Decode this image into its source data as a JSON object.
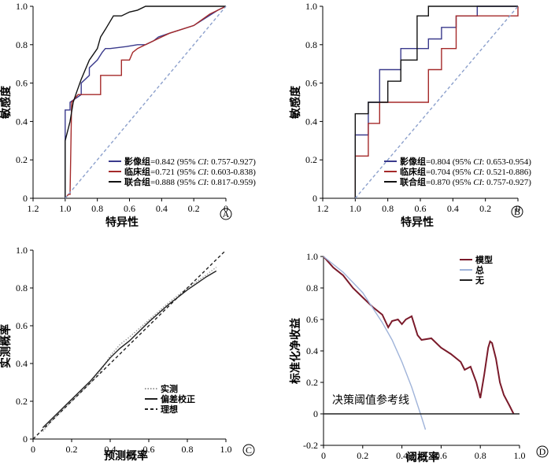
{
  "chart_data": [
    {
      "type": "line",
      "panel": "A",
      "xlabel": "特异性",
      "ylabel": "敏感度",
      "xlim": [
        1.2,
        0
      ],
      "ylim": [
        0,
        1.0
      ],
      "x_ticks": [
        "1.2",
        "1.0",
        "0.8",
        "0.6",
        "0.4",
        "0.2",
        "0"
      ],
      "y_ticks": [
        "0",
        "0.2",
        "0.4",
        "0.6",
        "0.8",
        "1.0"
      ],
      "legend_position": "bottom-right",
      "legend": [
        {
          "name": "影像组",
          "text": "=0.842 (95% ",
          "ci": "CI",
          "range": ": 0.757-0.927)",
          "color": "#3a3a8c"
        },
        {
          "name": "临床组",
          "text": "=0.721 (95% ",
          "ci": "CI",
          "range": ": 0.603-0.838)",
          "color": "#a52a2a"
        },
        {
          "name": "联合组",
          "text": "=0.888 (95% ",
          "ci": "CI",
          "range": ": 0.817-0.959)",
          "color": "#111111"
        }
      ],
      "series": [
        {
          "name": "影像组",
          "color": "#3a3a8c",
          "x": [
            1.0,
            1.0,
            0.97,
            0.97,
            0.9,
            0.9,
            0.85,
            0.85,
            0.8,
            0.77,
            0.75,
            0.72,
            0.62,
            0.55,
            0.5,
            0.45,
            0.42,
            0.35,
            0.2,
            0.05,
            0
          ],
          "y": [
            0,
            0.46,
            0.46,
            0.5,
            0.54,
            0.6,
            0.64,
            0.68,
            0.72,
            0.76,
            0.78,
            0.78,
            0.79,
            0.8,
            0.8,
            0.82,
            0.84,
            0.86,
            0.9,
            0.98,
            1.0
          ]
        },
        {
          "name": "临床组",
          "color": "#a52a2a",
          "x": [
            1.0,
            0.98,
            0.97,
            0.96,
            0.92,
            0.88,
            0.78,
            0.78,
            0.65,
            0.65,
            0.6,
            0.58,
            0.55,
            0.5,
            0.45,
            0.4,
            0.35,
            0.2,
            0.1,
            0
          ],
          "y": [
            0,
            0.02,
            0.02,
            0.5,
            0.54,
            0.54,
            0.54,
            0.64,
            0.64,
            0.72,
            0.72,
            0.76,
            0.78,
            0.8,
            0.82,
            0.84,
            0.86,
            0.9,
            0.96,
            1.0
          ]
        },
        {
          "name": "联合组",
          "color": "#111111",
          "x": [
            1.0,
            1.0,
            0.97,
            0.95,
            0.93,
            0.9,
            0.88,
            0.85,
            0.8,
            0.78,
            0.75,
            0.7,
            0.65,
            0.6,
            0.55,
            0.5,
            0.4,
            0.3,
            0.2,
            0
          ],
          "y": [
            0,
            0.3,
            0.4,
            0.5,
            0.55,
            0.62,
            0.66,
            0.72,
            0.78,
            0.84,
            0.88,
            0.95,
            0.95,
            0.97,
            0.98,
            1.0,
            1.0,
            1.0,
            1.0,
            1.0
          ]
        },
        {
          "name": "参考线",
          "color": "#8ca0cc",
          "dashed": true,
          "x": [
            1.0,
            0
          ],
          "y": [
            0,
            1.0
          ]
        }
      ]
    },
    {
      "type": "line",
      "panel": "B",
      "xlabel": "特异性",
      "ylabel": "敏感度",
      "xlim": [
        1.2,
        0
      ],
      "ylim": [
        0,
        1.0
      ],
      "x_ticks": [
        "1.2",
        "1.0",
        "0.8",
        "0.6",
        "0.4",
        "0.2",
        "0"
      ],
      "y_ticks": [
        "0",
        "0.2",
        "0.4",
        "0.6",
        "0.8",
        "1.0"
      ],
      "legend_position": "bottom-right",
      "legend": [
        {
          "name": "影像组",
          "text": "=0.804 (95% ",
          "ci": "CI",
          "range": ": 0.653-0.954)",
          "color": "#3a3a8c"
        },
        {
          "name": "临床组",
          "text": "=0.704 (95% ",
          "ci": "CI",
          "range": ": 0.521-0.886)",
          "color": "#a52a2a"
        },
        {
          "name": "联合组",
          "text": "=0.870 (95% ",
          "ci": "CI",
          "range": ": 0.757-0.927)",
          "color": "#111111"
        }
      ],
      "series": [
        {
          "name": "影像组",
          "color": "#3a3a8c",
          "x": [
            1.0,
            1.0,
            0.92,
            0.92,
            0.85,
            0.85,
            0.72,
            0.72,
            0.55,
            0.55,
            0.47,
            0.47,
            0.38,
            0.38,
            0.25,
            0.25,
            0
          ],
          "y": [
            0,
            0.33,
            0.33,
            0.5,
            0.5,
            0.67,
            0.67,
            0.78,
            0.78,
            0.83,
            0.83,
            0.89,
            0.89,
            0.95,
            0.95,
            1.0,
            1.0
          ]
        },
        {
          "name": "临床组",
          "color": "#a52a2a",
          "x": [
            1.0,
            1.0,
            0.92,
            0.92,
            0.85,
            0.85,
            0.55,
            0.55,
            0.47,
            0.47,
            0.38,
            0.38,
            0,
            0
          ],
          "y": [
            0,
            0.22,
            0.22,
            0.39,
            0.39,
            0.5,
            0.5,
            0.67,
            0.67,
            0.78,
            0.78,
            0.95,
            0.95,
            1.0
          ]
        },
        {
          "name": "联合组",
          "color": "#111111",
          "x": [
            1.0,
            1.0,
            0.92,
            0.92,
            0.8,
            0.8,
            0.72,
            0.72,
            0.62,
            0.62,
            0.55,
            0.55,
            0.4,
            0.4,
            0
          ],
          "y": [
            0,
            0.44,
            0.44,
            0.5,
            0.5,
            0.61,
            0.61,
            0.72,
            0.72,
            0.95,
            0.95,
            1.0,
            1.0,
            1.0,
            1.0
          ]
        },
        {
          "name": "参考线",
          "color": "#8ca0cc",
          "dashed": true,
          "x": [
            1.0,
            0
          ],
          "y": [
            0,
            1.0
          ]
        }
      ]
    },
    {
      "type": "line",
      "panel": "C",
      "xlabel": "预测概率",
      "ylabel": "实测概率",
      "xlim": [
        0,
        1.0
      ],
      "ylim": [
        0,
        1.0
      ],
      "x_ticks": [
        "0",
        "0.2",
        "0.4",
        "0.6",
        "0.8",
        "1.0"
      ],
      "y_ticks": [
        "0",
        "0.2",
        "0.4",
        "0.6",
        "0.8",
        "1.0"
      ],
      "legend_position": "bottom-right",
      "legend": [
        {
          "name": "实测",
          "style": "dotted",
          "color": "#999999"
        },
        {
          "name": "偏差校正",
          "style": "solid",
          "color": "#222222"
        },
        {
          "name": "理想",
          "style": "dashed",
          "color": "#222222"
        }
      ],
      "series": [
        {
          "name": "实测",
          "color": "#999999",
          "dotted": true,
          "x": [
            0.05,
            0.1,
            0.2,
            0.3,
            0.35,
            0.4,
            0.45,
            0.5,
            0.6,
            0.7,
            0.8,
            0.9,
            0.95
          ],
          "y": [
            0.04,
            0.1,
            0.2,
            0.3,
            0.36,
            0.44,
            0.5,
            0.54,
            0.63,
            0.72,
            0.8,
            0.87,
            0.91
          ]
        },
        {
          "name": "偏差校正",
          "color": "#222222",
          "x": [
            0.05,
            0.1,
            0.2,
            0.3,
            0.35,
            0.4,
            0.45,
            0.5,
            0.6,
            0.7,
            0.8,
            0.9,
            0.95
          ],
          "y": [
            0.06,
            0.11,
            0.21,
            0.31,
            0.37,
            0.43,
            0.48,
            0.52,
            0.62,
            0.71,
            0.79,
            0.86,
            0.89
          ]
        },
        {
          "name": "理想",
          "color": "#222222",
          "dashed": true,
          "x": [
            0,
            1.0
          ],
          "y": [
            0,
            1.0
          ]
        }
      ]
    },
    {
      "type": "line",
      "panel": "D",
      "xlabel": "阈概率",
      "ylabel": "标准化净收益",
      "xlim": [
        0,
        1.0
      ],
      "ylim": [
        -0.2,
        1.0
      ],
      "x_ticks": [
        "0",
        "0.2",
        "0.4",
        "0.6",
        "0.8",
        "1.0"
      ],
      "y_ticks": [
        "-0.2",
        "0",
        "0.2",
        "0.4",
        "0.6",
        "0.8",
        "1.0"
      ],
      "legend_position": "top-right",
      "legend": [
        {
          "name": "模型",
          "color": "#7a1a2a"
        },
        {
          "name": "总",
          "color": "#9fb3d9"
        },
        {
          "name": "无",
          "color": "#222222"
        }
      ],
      "annotation": "决策阈值参考线",
      "series": [
        {
          "name": "模型",
          "color": "#7a1a2a",
          "x": [
            0,
            0.05,
            0.1,
            0.15,
            0.2,
            0.25,
            0.3,
            0.33,
            0.35,
            0.38,
            0.4,
            0.42,
            0.45,
            0.48,
            0.5,
            0.55,
            0.6,
            0.65,
            0.7,
            0.72,
            0.75,
            0.78,
            0.8,
            0.82,
            0.84,
            0.85,
            0.86,
            0.88,
            0.9,
            0.92,
            0.95,
            0.97
          ],
          "y": [
            1.0,
            0.93,
            0.88,
            0.8,
            0.74,
            0.68,
            0.63,
            0.55,
            0.59,
            0.6,
            0.57,
            0.6,
            0.62,
            0.5,
            0.47,
            0.48,
            0.42,
            0.38,
            0.33,
            0.28,
            0.3,
            0.2,
            0.1,
            0.25,
            0.42,
            0.46,
            0.45,
            0.35,
            0.2,
            0.12,
            0.05,
            0
          ]
        },
        {
          "name": "总",
          "color": "#9fb3d9",
          "x": [
            0,
            0.1,
            0.2,
            0.3,
            0.35,
            0.4,
            0.45,
            0.5,
            0.52
          ],
          "y": [
            1.0,
            0.9,
            0.77,
            0.58,
            0.47,
            0.33,
            0.17,
            -0.02,
            -0.1
          ]
        },
        {
          "name": "无",
          "color": "#222222",
          "x": [
            0,
            1.0
          ],
          "y": [
            0,
            0
          ]
        }
      ]
    }
  ],
  "panel_labels": [
    "A",
    "B",
    "C",
    "D"
  ]
}
